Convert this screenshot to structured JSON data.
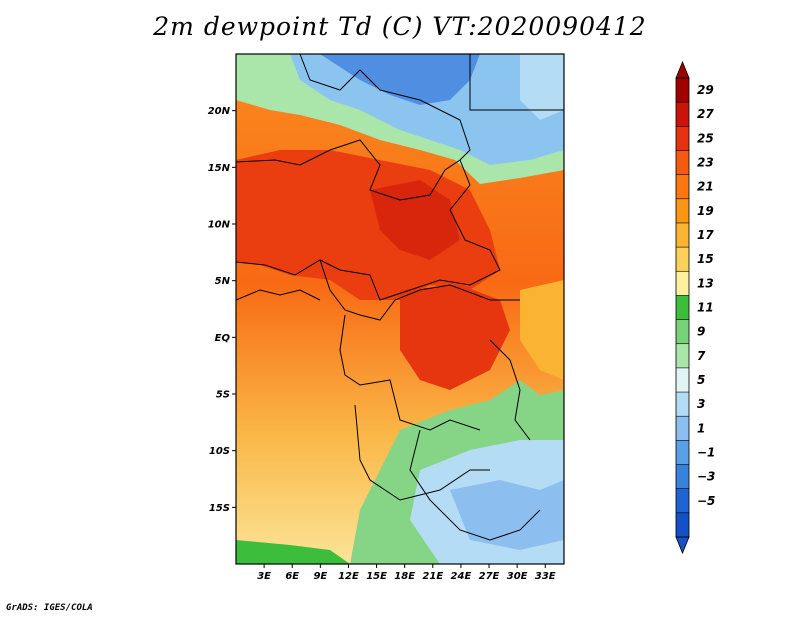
{
  "title": "2m dewpoint Td (C) VT:2020090412",
  "credit": "GrADS: IGES/COLA",
  "map": {
    "lat_labels": [
      "20N",
      "15N",
      "10N",
      "5N",
      "EQ",
      "5S",
      "10S",
      "15S"
    ],
    "lat_values": [
      20,
      15,
      10,
      5,
      0,
      -5,
      -10,
      -15
    ],
    "lon_labels": [
      "3E",
      "6E",
      "9E",
      "12E",
      "15E",
      "18E",
      "21E",
      "24E",
      "27E",
      "30E",
      "33E"
    ],
    "lon_values": [
      3,
      6,
      9,
      12,
      15,
      18,
      21,
      24,
      27,
      30,
      33
    ],
    "lat_range": [
      -20,
      25
    ],
    "lon_range": [
      0,
      35
    ]
  },
  "colorbar": {
    "labels": [
      "29",
      "27",
      "25",
      "23",
      "21",
      "19",
      "17",
      "15",
      "13",
      "11",
      "9",
      "7",
      "5",
      "3",
      "1",
      "−1",
      "−3",
      "−5"
    ],
    "colors": [
      "#a00000",
      "#c8140a",
      "#e6320f",
      "#f55a0f",
      "#fa780f",
      "#fa9614",
      "#fab432",
      "#fad25a",
      "#fff0a0",
      "#3cbe3c",
      "#78d278",
      "#aae6aa",
      "#e1f5f5",
      "#b4dcf5",
      "#8cbef0",
      "#5aa0e6",
      "#3782dc",
      "#1e64d2",
      "#1450c8"
    ]
  }
}
